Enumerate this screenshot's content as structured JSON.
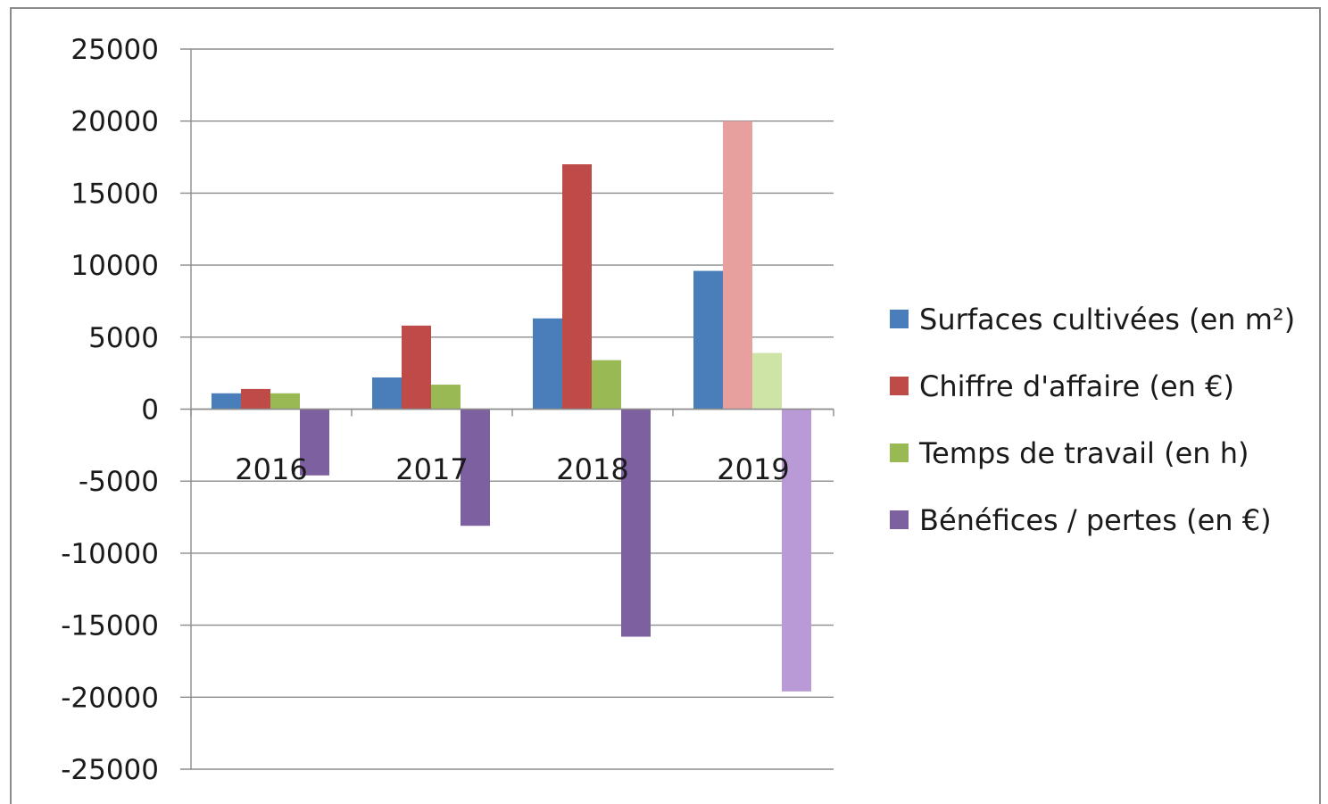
{
  "chart_data": {
    "type": "bar",
    "categories": [
      "2016",
      "2017",
      "2018",
      "2019"
    ],
    "series": [
      {
        "name": "Surfaces cultivées (en m²)",
        "values": [
          1100,
          2200,
          6300,
          9600
        ],
        "color": "#4a7ebb"
      },
      {
        "name": "Chiffre d'affaire (en €)",
        "values": [
          1400,
          5800,
          17000,
          20000
        ],
        "color": "#be4b48"
      },
      {
        "name": "Temps de travail (en h)",
        "values": [
          1100,
          1700,
          3400,
          3900
        ],
        "color": "#98b954"
      },
      {
        "name": "Bénéfices / pertes (en €)",
        "values": [
          -4600,
          -8100,
          -15800,
          -19600
        ],
        "color": "#7d60a0"
      }
    ],
    "highlighted_category": "2019",
    "highlight_colors": {
      "#be4b48": "#e8a09e",
      "#98b954": "#cde4a6",
      "#7d60a0": "#b99ad6"
    },
    "ylim": [
      -25000,
      25000
    ],
    "yticks": [
      "25000",
      "20000",
      "15000",
      "10000",
      "5000",
      "0",
      "-5000",
      "-10000",
      "-15000",
      "-20000",
      "-25000"
    ],
    "grid": true,
    "legend_position": "right",
    "title": "",
    "xlabel": "",
    "ylabel": ""
  }
}
